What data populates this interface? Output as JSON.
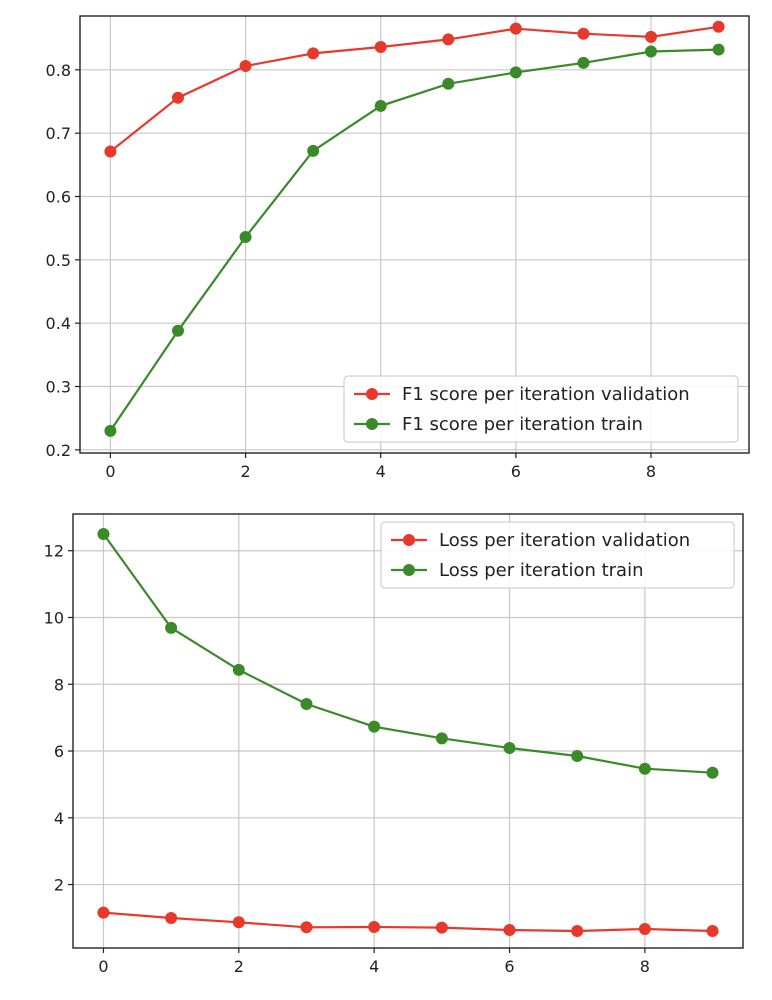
{
  "colors": {
    "validation": "#e8382c",
    "train": "#3b8a2a",
    "grid": "#c8c8c8",
    "axes": "#222222"
  },
  "chart_data": [
    {
      "type": "line",
      "title": "",
      "xlabel": "",
      "ylabel": "",
      "grid": true,
      "legend_position": "lower-right",
      "xlim": [
        -0.45,
        9.45
      ],
      "ylim": [
        0.195,
        0.885
      ],
      "xticks": [
        0,
        2,
        4,
        6,
        8
      ],
      "yticks": [
        0.2,
        0.3,
        0.4,
        0.5,
        0.6,
        0.7,
        0.8
      ],
      "x": [
        0,
        1,
        2,
        3,
        4,
        5,
        6,
        7,
        8,
        9
      ],
      "series": [
        {
          "name": "F1 score per iteration validation",
          "color_key": "validation",
          "values": [
            0.671,
            0.756,
            0.806,
            0.826,
            0.836,
            0.848,
            0.865,
            0.857,
            0.852,
            0.868
          ]
        },
        {
          "name": "F1 score per iteration train",
          "color_key": "train",
          "values": [
            0.23,
            0.388,
            0.536,
            0.672,
            0.743,
            0.778,
            0.796,
            0.811,
            0.829,
            0.832
          ]
        }
      ]
    },
    {
      "type": "line",
      "title": "",
      "xlabel": "",
      "ylabel": "",
      "grid": true,
      "legend_position": "upper-right",
      "xlim": [
        -0.45,
        9.45
      ],
      "ylim": [
        0.1,
        13.1
      ],
      "xticks": [
        0,
        2,
        4,
        6,
        8
      ],
      "yticks": [
        2,
        4,
        6,
        8,
        10,
        12
      ],
      "x": [
        0,
        1,
        2,
        3,
        4,
        5,
        6,
        7,
        8,
        9
      ],
      "series": [
        {
          "name": "Loss per iteration validation",
          "color_key": "validation",
          "values": [
            1.16,
            1.0,
            0.87,
            0.72,
            0.73,
            0.71,
            0.64,
            0.61,
            0.67,
            0.61
          ]
        },
        {
          "name": "Loss per iteration train",
          "color_key": "train",
          "values": [
            12.5,
            9.69,
            8.43,
            7.41,
            6.73,
            6.38,
            6.09,
            5.85,
            5.47,
            5.35
          ]
        }
      ]
    }
  ]
}
